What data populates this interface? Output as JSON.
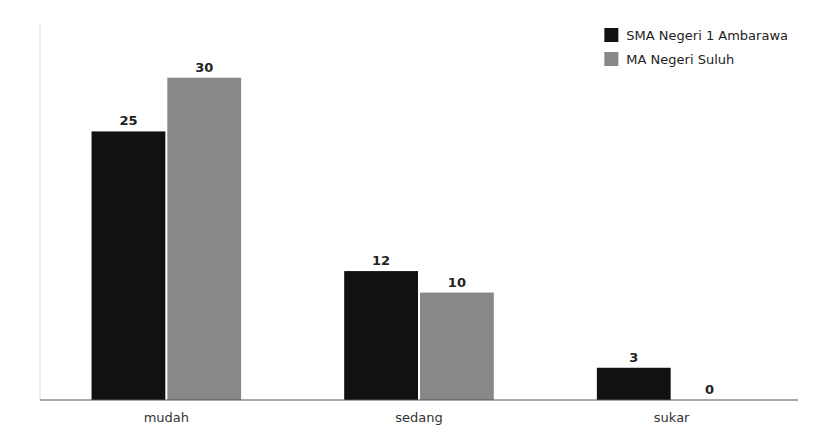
{
  "chart_data": {
    "type": "bar",
    "categories": [
      "mudah",
      "sedang",
      "sukar"
    ],
    "series": [
      {
        "name": "SMA Negeri 1 Ambarawa",
        "color": "#111111",
        "values": [
          25,
          12,
          3
        ]
      },
      {
        "name": "MA Negeri Suluh",
        "color": "#888888",
        "values": [
          30,
          10,
          0
        ]
      }
    ],
    "ylim": [
      0,
      35
    ],
    "data_labels": true,
    "legend": "upper right",
    "tick_labels": "x",
    "grid": false
  }
}
